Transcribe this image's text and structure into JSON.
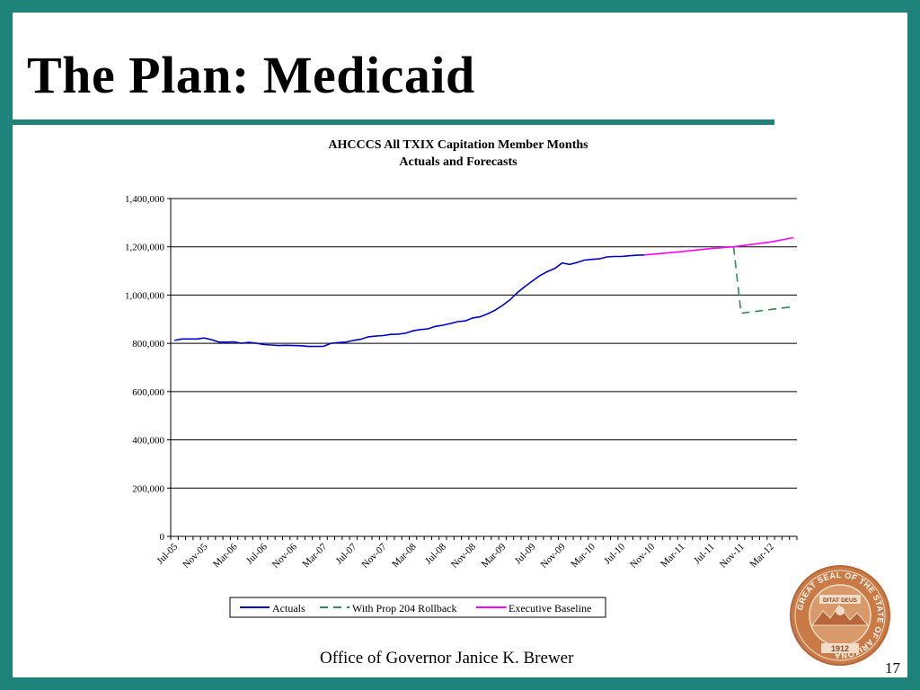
{
  "slide": {
    "title": "The Plan: Medicaid",
    "footer": "Office of Governor Janice K. Brewer",
    "page_number": "17"
  },
  "seal": {
    "ring_text": "GREAT SEAL OF THE STATE OF ARIZONA",
    "motto": "DITAT DEUS",
    "year": "1912"
  },
  "chart_data": {
    "type": "line",
    "title": "AHCCCS All TXIX Capitation Member Months",
    "subtitle": "Actuals and Forecasts",
    "xlabel": "",
    "ylabel": "",
    "ylim": [
      0,
      1400000
    ],
    "yticks": [
      "0",
      "200,000",
      "400,000",
      "600,000",
      "800,000",
      "1,000,000",
      "1,200,000",
      "1,400,000"
    ],
    "xticks": [
      "Jul-05",
      "Nov-05",
      "Mar-06",
      "Jul-06",
      "Nov-06",
      "Mar-07",
      "Jul-07",
      "Nov-07",
      "Mar-08",
      "Jul-08",
      "Nov-08",
      "Mar-09",
      "Jul-09",
      "Nov-09",
      "Mar-10",
      "Jul-10",
      "Nov-10",
      "Mar-11",
      "Jul-11",
      "Nov-11",
      "Mar-12"
    ],
    "x_start": "Jul-05",
    "x_end": "Jun-12",
    "grid": true,
    "legend_position": "bottom",
    "series": [
      {
        "name": "Actuals",
        "color": "#0000cc",
        "style": "solid",
        "values": [
          812000,
          818000,
          818000,
          818000,
          822000,
          815000,
          805000,
          805000,
          806000,
          800000,
          804000,
          800000,
          795000,
          793000,
          791000,
          792000,
          791000,
          790000,
          787000,
          787000,
          788000,
          800000,
          803000,
          805000,
          812000,
          817000,
          827000,
          830000,
          832000,
          837000,
          838000,
          842000,
          852000,
          857000,
          860000,
          870000,
          875000,
          882000,
          890000,
          893000,
          905000,
          910000,
          922000,
          937000,
          957000,
          980000,
          1010000,
          1035000,
          1058000,
          1080000,
          1097000,
          1110000,
          1133000,
          1127000,
          1135000,
          1145000,
          1148000,
          1150000,
          1158000,
          1160000,
          1160000,
          1163000,
          1165000,
          1166000
        ]
      },
      {
        "name": "With Prop 204 Rollback",
        "color": "#2e8b57",
        "style": "dashed",
        "points": [
          [
            "Oct-11",
            1200000
          ],
          [
            "Nov-11",
            925000
          ],
          [
            "Jun-12",
            952000
          ]
        ]
      },
      {
        "name": "Executive Baseline",
        "color": "#ff00ff",
        "style": "solid",
        "points": [
          [
            "Oct-10",
            1166000
          ],
          [
            "Mar-11",
            1180000
          ],
          [
            "Jul-11",
            1193000
          ],
          [
            "Oct-11",
            1200000
          ],
          [
            "Mar-12",
            1220000
          ],
          [
            "Jun-12",
            1238000
          ]
        ]
      }
    ]
  }
}
